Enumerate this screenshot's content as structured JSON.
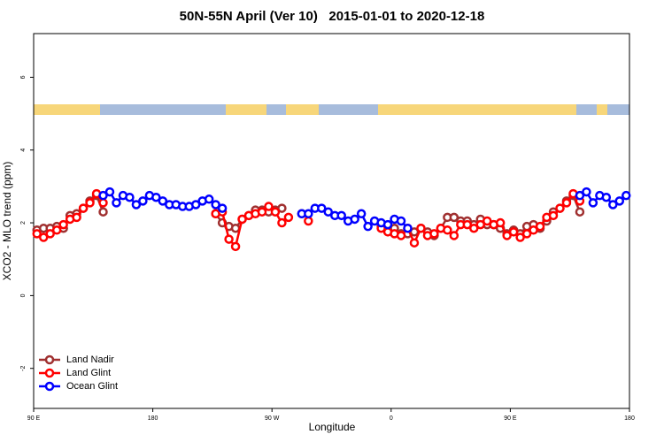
{
  "chart_data": {
    "type": "line",
    "title": "50N-55N April (Ver 10)   2015-01-01 to 2020-12-18",
    "x_label": "Longitude",
    "y_label": "XCO2 - MLO trend (ppm)",
    "xlim": [
      90,
      540
    ],
    "ylim": [
      -3.1,
      7.2
    ],
    "xticks": [
      {
        "value": 90,
        "label": "90 E"
      },
      180,
      {
        "value": 270,
        "label": "90 W"
      },
      {
        "value": 360,
        "label": "0"
      },
      {
        "value": 450,
        "label": "90 E"
      },
      {
        "value": 540,
        "label": "180"
      }
    ],
    "yticks": [
      -2,
      0,
      2,
      4,
      6
    ],
    "legend": "bottom-left",
    "series": [
      {
        "name": "Land Nadir",
        "color": "#a03030",
        "x": [
          92.5,
          97.5,
          102.5,
          107.5,
          112.5,
          117.5,
          122.5,
          127.5,
          132.5,
          137.5,
          142.5,
          null,
          227.5,
          232.5,
          237.5,
          242.5,
          247.5,
          252.5,
          257.5,
          262.5,
          267.5,
          272.5,
          277.5,
          null,
          292.5,
          null,
          352.5,
          357.5,
          362.5,
          367.5,
          372.5,
          377.5,
          382.5,
          387.5,
          392.5,
          397.5,
          402.5,
          407.5,
          412.5,
          417.5,
          422.5,
          427.5,
          432.5,
          437.5,
          442.5,
          447.5,
          452.5,
          457.5,
          462.5,
          467.5,
          472.5,
          477.5,
          482.5,
          487.5,
          492.5,
          497.5,
          502.5
        ],
        "values": [
          1.8,
          1.85,
          1.85,
          1.9,
          1.85,
          2.2,
          2.25,
          2.4,
          2.6,
          2.75,
          2.3,
          null,
          2.25,
          2.0,
          1.9,
          1.85,
          2.1,
          2.2,
          2.35,
          2.35,
          2.3,
          2.35,
          2.4,
          null,
          2.25,
          null,
          1.9,
          1.85,
          1.85,
          1.7,
          1.7,
          1.75,
          1.85,
          1.75,
          1.65,
          1.85,
          2.15,
          2.15,
          2.05,
          2.05,
          1.95,
          2.1,
          1.95,
          1.95,
          1.85,
          1.7,
          1.8,
          1.7,
          1.9,
          1.95,
          1.85,
          2.05,
          2.3,
          2.4,
          2.6,
          2.75,
          2.3
        ]
      },
      {
        "name": "Land Glint",
        "color": "#ff0000",
        "x": [
          92.5,
          97.5,
          102.5,
          107.5,
          112.5,
          117.5,
          122.5,
          127.5,
          132.5,
          137.5,
          142.5,
          null,
          227.5,
          232.5,
          237.5,
          242.5,
          247.5,
          252.5,
          257.5,
          262.5,
          267.5,
          272.5,
          277.5,
          282.5,
          null,
          297.5,
          null,
          352.5,
          357.5,
          362.5,
          367.5,
          372.5,
          377.5,
          382.5,
          387.5,
          392.5,
          397.5,
          402.5,
          407.5,
          412.5,
          417.5,
          422.5,
          427.5,
          432.5,
          437.5,
          442.5,
          447.5,
          452.5,
          457.5,
          462.5,
          467.5,
          472.5,
          477.5,
          482.5,
          487.5,
          492.5,
          497.5,
          502.5
        ],
        "values": [
          1.7,
          1.6,
          1.7,
          1.8,
          1.95,
          2.1,
          2.15,
          2.4,
          2.55,
          2.8,
          2.55,
          null,
          2.25,
          2.3,
          1.55,
          1.35,
          2.1,
          2.2,
          2.25,
          2.3,
          2.45,
          2.3,
          2.0,
          2.15,
          null,
          2.05,
          null,
          1.85,
          1.75,
          1.7,
          1.65,
          1.85,
          1.45,
          1.85,
          1.65,
          1.7,
          1.85,
          1.8,
          1.65,
          1.95,
          1.95,
          1.85,
          1.95,
          2.05,
          1.95,
          2.0,
          1.65,
          1.75,
          1.6,
          1.7,
          1.8,
          1.9,
          2.15,
          2.2,
          2.4,
          2.55,
          2.8,
          2.6
        ]
      },
      {
        "name": "Ocean Glint",
        "color": "#0000ff",
        "x": [
          142.5,
          147.5,
          152.5,
          157.5,
          162.5,
          167.5,
          172.5,
          177.5,
          182.5,
          187.5,
          192.5,
          197.5,
          202.5,
          207.5,
          212.5,
          217.5,
          222.5,
          227.5,
          232.5,
          null,
          292.5,
          297.5,
          302.5,
          307.5,
          312.5,
          317.5,
          322.5,
          327.5,
          332.5,
          337.5,
          342.5,
          347.5,
          352.5,
          357.5,
          362.5,
          367.5,
          372.5,
          null,
          502.5,
          507.5,
          512.5,
          517.5,
          522.5,
          527.5,
          532.5,
          537.5
        ],
        "values": [
          2.75,
          2.85,
          2.55,
          2.75,
          2.7,
          2.5,
          2.6,
          2.75,
          2.7,
          2.6,
          2.5,
          2.5,
          2.45,
          2.45,
          2.5,
          2.6,
          2.65,
          2.5,
          2.4,
          null,
          2.25,
          2.25,
          2.4,
          2.4,
          2.3,
          2.2,
          2.2,
          2.05,
          2.1,
          2.25,
          1.9,
          2.05,
          2.0,
          1.95,
          2.1,
          2.05,
          1.85,
          null,
          2.75,
          2.85,
          2.55,
          2.75,
          2.7,
          2.5,
          2.6,
          2.75
        ]
      }
    ]
  }
}
